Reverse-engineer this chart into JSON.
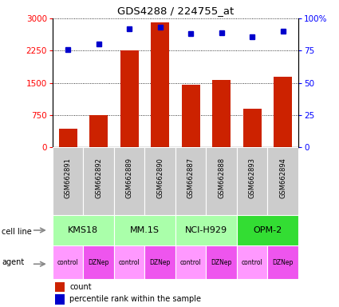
{
  "title": "GDS4288 / 224755_at",
  "samples": [
    "GSM662891",
    "GSM662892",
    "GSM662889",
    "GSM662890",
    "GSM662887",
    "GSM662888",
    "GSM662893",
    "GSM662894"
  ],
  "counts": [
    430,
    750,
    2250,
    2900,
    1450,
    1560,
    900,
    1650
  ],
  "percentile_ranks": [
    76,
    80,
    92,
    93,
    88,
    89,
    86,
    90
  ],
  "cell_lines": [
    {
      "label": "KMS18",
      "span": [
        0,
        2
      ],
      "color": "#AAFFAA"
    },
    {
      "label": "MM.1S",
      "span": [
        2,
        4
      ],
      "color": "#AAFFAA"
    },
    {
      "label": "NCI-H929",
      "span": [
        4,
        6
      ],
      "color": "#AAFFAA"
    },
    {
      "label": "OPM-2",
      "span": [
        6,
        8
      ],
      "color": "#33DD33"
    }
  ],
  "agents": [
    "control",
    "DZNep",
    "control",
    "DZNep",
    "control",
    "DZNep",
    "control",
    "DZNep"
  ],
  "agent_color_control": "#FF99FF",
  "agent_color_dznep": "#EE55EE",
  "bar_color": "#CC2200",
  "dot_color": "#0000CC",
  "ylim_left": [
    0,
    3000
  ],
  "ylim_right": [
    0,
    100
  ],
  "yticks_left": [
    0,
    750,
    1500,
    2250,
    3000
  ],
  "yticks_right": [
    0,
    25,
    50,
    75,
    100
  ],
  "sample_bg_color": "#CCCCCC"
}
